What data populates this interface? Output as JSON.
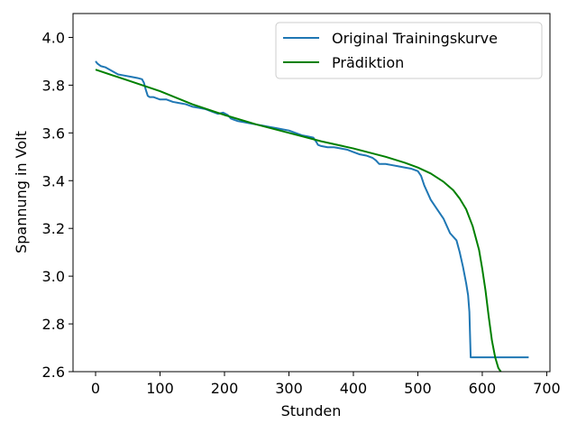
{
  "chart_data": {
    "type": "line",
    "xlabel": "Stunden",
    "ylabel": "Spannung in Volt",
    "xlim": [
      -35,
      705
    ],
    "ylim": [
      2.6,
      4.1
    ],
    "xticks": [
      0,
      100,
      200,
      300,
      400,
      500,
      600,
      700
    ],
    "yticks": [
      2.6,
      2.8,
      3.0,
      3.2,
      3.4,
      3.6,
      3.8,
      4.0
    ],
    "xtick_labels": [
      "0",
      "100",
      "200",
      "300",
      "400",
      "500",
      "600",
      "700"
    ],
    "ytick_labels": [
      "2.6",
      "2.8",
      "3.0",
      "3.2",
      "3.4",
      "3.6",
      "3.8",
      "4.0"
    ],
    "grid": false,
    "legend_position": "top-right",
    "series": [
      {
        "name": "Original Trainingskurve",
        "color": "#1f77b4",
        "x": [
          0,
          3,
          8,
          15,
          25,
          35,
          45,
          55,
          65,
          72,
          75,
          78,
          81,
          84,
          86,
          90,
          100,
          110,
          120,
          130,
          140,
          150,
          160,
          170,
          180,
          190,
          198,
          205,
          210,
          215,
          220,
          230,
          240,
          250,
          260,
          270,
          280,
          290,
          300,
          310,
          320,
          330,
          338,
          343,
          345,
          350,
          360,
          370,
          380,
          390,
          400,
          410,
          420,
          430,
          435,
          440,
          445,
          450,
          460,
          470,
          480,
          490,
          500,
          505,
          510,
          520,
          530,
          540,
          545,
          550,
          560,
          565,
          570,
          575,
          578,
          580,
          582,
          600,
          620,
          640,
          660,
          672
        ],
        "y": [
          3.9,
          3.89,
          3.88,
          3.875,
          3.86,
          3.845,
          3.84,
          3.835,
          3.83,
          3.825,
          3.81,
          3.78,
          3.755,
          3.75,
          3.75,
          3.75,
          3.74,
          3.74,
          3.73,
          3.725,
          3.72,
          3.71,
          3.705,
          3.7,
          3.69,
          3.68,
          3.685,
          3.675,
          3.66,
          3.655,
          3.65,
          3.645,
          3.64,
          3.635,
          3.63,
          3.625,
          3.62,
          3.615,
          3.61,
          3.6,
          3.59,
          3.585,
          3.58,
          3.56,
          3.55,
          3.545,
          3.54,
          3.54,
          3.535,
          3.53,
          3.52,
          3.51,
          3.505,
          3.495,
          3.485,
          3.47,
          3.47,
          3.47,
          3.465,
          3.46,
          3.455,
          3.45,
          3.44,
          3.42,
          3.38,
          3.32,
          3.28,
          3.24,
          3.21,
          3.18,
          3.15,
          3.1,
          3.04,
          2.97,
          2.92,
          2.85,
          2.66,
          2.66,
          2.66,
          2.66,
          2.66,
          2.66
        ]
      },
      {
        "name": "Prädiktion",
        "color": "#008000",
        "x": [
          0,
          50,
          100,
          150,
          200,
          250,
          300,
          350,
          400,
          450,
          480,
          500,
          520,
          540,
          555,
          565,
          575,
          585,
          595,
          600,
          605,
          610,
          615,
          620,
          625,
          630
        ],
        "y": [
          3.865,
          3.82,
          3.775,
          3.72,
          3.675,
          3.635,
          3.6,
          3.565,
          3.535,
          3.5,
          3.475,
          3.455,
          3.43,
          3.395,
          3.36,
          3.325,
          3.28,
          3.21,
          3.11,
          3.03,
          2.94,
          2.83,
          2.73,
          2.66,
          2.615,
          2.595
        ]
      }
    ]
  }
}
